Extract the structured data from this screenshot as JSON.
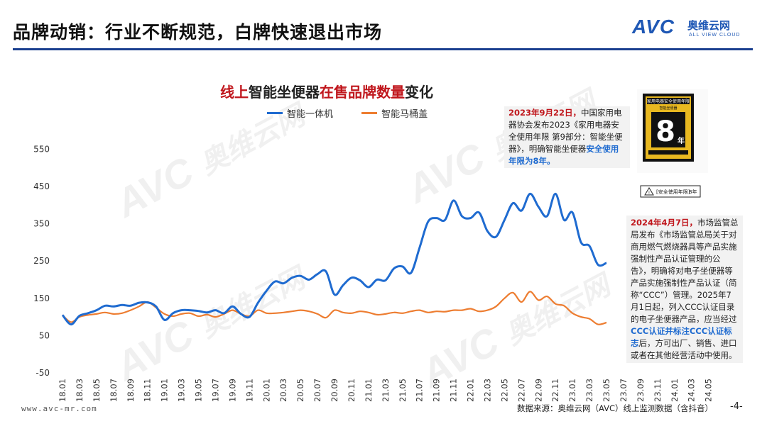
{
  "header": {
    "title": "品牌动销：行业不断规范，白牌快速退出市场",
    "logo_avc": "AVC",
    "logo_cn": "奥维云网",
    "logo_en": "ALL VIEW CLOUD"
  },
  "colors": {
    "accent": "#1a3f8f",
    "series1": "#1f6bd0",
    "series2": "#ed7d31",
    "highlight": "#c0161c"
  },
  "chart_data": {
    "type": "line",
    "title_parts": [
      "线上",
      "智能坐便器",
      "在售品牌数量",
      "变化"
    ],
    "xlabel": "",
    "ylabel": "",
    "ylim": [
      -50,
      600
    ],
    "yticks": [
      -50,
      50,
      150,
      250,
      350,
      450,
      550
    ],
    "ytick_labels": [
      "-50",
      "50",
      "150",
      "250",
      "350",
      "450",
      "550"
    ],
    "grid": false,
    "legend_position": "top-center",
    "x_tick_labels": [
      "18.01",
      "18.03",
      "18.05",
      "18.07",
      "18.09",
      "18.11",
      "19.01",
      "19.03",
      "19.05",
      "19.07",
      "19.09",
      "19.11",
      "20.01",
      "20.03",
      "20.05",
      "20.07",
      "20.09",
      "20.11",
      "21.01",
      "21.03",
      "21.05",
      "21.07",
      "21.09",
      "21.11",
      "22.01",
      "22.03",
      "22.05",
      "22.07",
      "22.09",
      "22.11",
      "23.01",
      "23.03",
      "23.05",
      "23.07",
      "23.09",
      "23.11",
      "24.01",
      "24.03",
      "24.05"
    ],
    "series": [
      {
        "name": "智能一体机",
        "color": "#1f6bd0",
        "values": [
          105,
          80,
          103,
          110,
          118,
          130,
          128,
          132,
          130,
          138,
          139,
          128,
          92,
          110,
          118,
          118,
          116,
          112,
          118,
          110,
          128,
          108,
          100,
          138,
          170,
          195,
          190,
          205,
          210,
          200,
          215,
          222,
          160,
          185,
          205,
          198,
          180,
          200,
          198,
          230,
          235,
          218,
          285,
          355,
          365,
          360,
          412,
          370,
          365,
          380,
          330,
          315,
          360,
          405,
          385,
          430,
          395,
          370,
          430,
          360,
          380,
          300,
          290,
          240,
          245
        ]
      },
      {
        "name": "智能马桶盖",
        "color": "#ed7d31",
        "values": [
          105,
          86,
          100,
          105,
          108,
          112,
          108,
          110,
          118,
          128,
          140,
          125,
          108,
          102,
          108,
          110,
          102,
          106,
          100,
          108,
          118,
          108,
          102,
          118,
          110,
          110,
          112,
          115,
          118,
          115,
          108,
          98,
          118,
          112,
          110,
          115,
          112,
          106,
          108,
          112,
          110,
          115,
          118,
          112,
          115,
          114,
          118,
          118,
          122,
          115,
          118,
          128,
          150,
          165,
          140,
          168,
          145,
          155,
          135,
          130,
          110,
          100,
          95,
          80,
          85
        ]
      }
    ]
  },
  "annotations": {
    "note1_date": "2023年9月22日，",
    "note1_text": "中国家用电器协会发布2023《家用电器安全使用年限 第9部分：智能坐便器》，明确智能坐便器",
    "note1_highlight": "安全使用年限为8年。",
    "note2_date": "2024年4月7日，",
    "note2_text": "市场监管总局发布《市场监管总局关于对商用燃气燃烧器具等产品实施强制性产品认证管理的公告》，明确将对电子坐便器等产品实施强制性产品认证（简称“CCC”）管理。2025年7月1日起，列入CCC认证目录的电子坐便器产品，应当经过",
    "note2_highlight": "CCC认证并标注CCC认证标志",
    "note2_tail": "后，方可出厂、销售、进口或者在其他经营活动中使用。"
  },
  "label_image": {
    "top_text": "家用电器安全使用年限",
    "sub_text": "智能坐便器",
    "big_number": "8",
    "unit": "年",
    "bar_text": "[安全使用年限]",
    "bar_value": "8年"
  },
  "footer": {
    "url": "www.avc-mr.com",
    "source": "数据来源：奥维云网（AVC）线上监测数据（含抖音）",
    "page": "-4-"
  },
  "watermark": {
    "brand": "AVC",
    "cn": "奥维云网",
    "en": "ALL VIEW CLOUD"
  }
}
